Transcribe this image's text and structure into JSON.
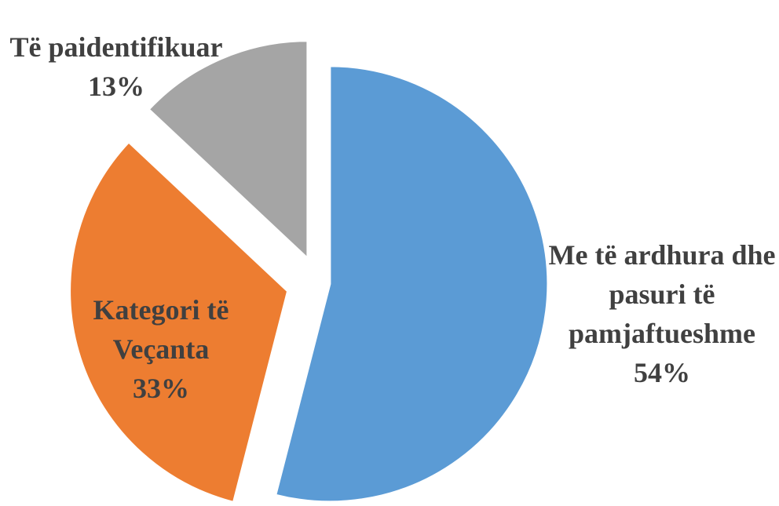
{
  "chart_data": {
    "type": "pie",
    "categories": [
      "Me të ardhura dhe pasuri të pamjaftueshme",
      "Kategori të Veçanta",
      "Të paidentifikuar"
    ],
    "values": [
      54,
      33,
      13
    ],
    "value_labels": [
      "54%",
      "33%",
      "13%"
    ],
    "colors": [
      "#5b9bd5",
      "#ed7d31",
      "#a5a5a5"
    ]
  }
}
